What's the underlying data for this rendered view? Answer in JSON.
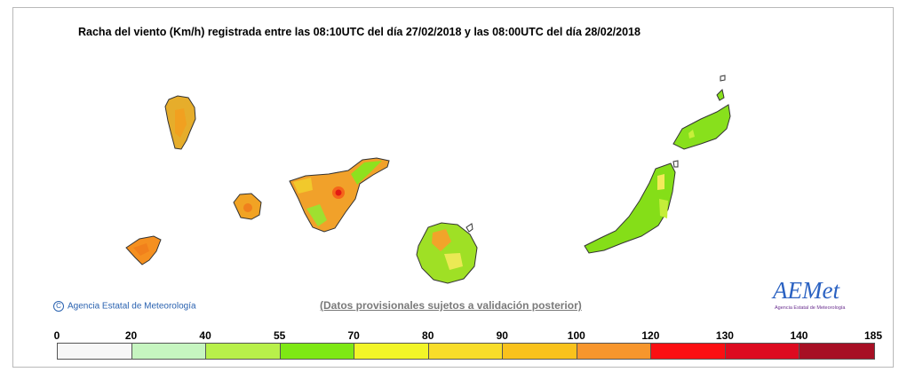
{
  "title": "Racha del viento (Km/h) registrada entre las 08:10UTC del día 27/02/2018 y las 08:00UTC del día 28/02/2018",
  "copyright": "Agencia Estatal de Meteorología",
  "disclaimer": "(Datos provisionales sujetos a validación posterior)",
  "logo": {
    "mark": "AEMet",
    "subtitle": "Agencia Estatal de Meteorología"
  },
  "legend": {
    "ticks": [
      "0",
      "20",
      "40",
      "55",
      "70",
      "80",
      "90",
      "100",
      "120",
      "130",
      "140",
      "185"
    ],
    "colors": [
      "#f7f7f7",
      "#c6f5c0",
      "#b8f04a",
      "#7ee814",
      "#f2f528",
      "#f8dd2a",
      "#f9c21c",
      "#f7962d",
      "#fb0f12",
      "#dd0b20",
      "#a70f24"
    ]
  },
  "islands": [
    {
      "name": "La Palma",
      "color": "#e6ad2b"
    },
    {
      "name": "La Gomera",
      "color": "#f1a324"
    },
    {
      "name": "El Hierro",
      "color": "#f59020"
    },
    {
      "name": "Tenerife",
      "color": "#f1a12a"
    },
    {
      "name": "Gran Canaria",
      "color": "#9fe025"
    },
    {
      "name": "Fuerteventura",
      "color": "#85de18"
    },
    {
      "name": "Lanzarote",
      "color": "#88e01c"
    }
  ]
}
